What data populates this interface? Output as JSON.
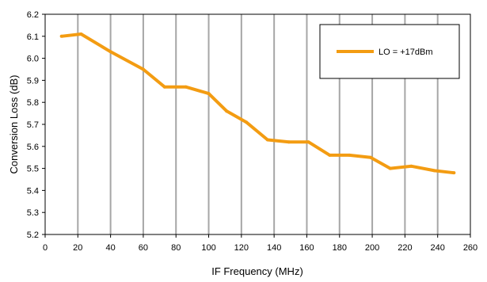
{
  "chart_data": {
    "type": "line",
    "xlabel": "IF Frequency (MHz)",
    "ylabel": "Conversion Loss (dB)",
    "xlim": [
      0,
      260
    ],
    "ylim": [
      5.2,
      6.2
    ],
    "xticks": [
      "0",
      "20",
      "40",
      "60",
      "80",
      "100",
      "120",
      "140",
      "160",
      "180",
      "200",
      "220",
      "240",
      "260"
    ],
    "yticks": [
      "5.2",
      "5.3",
      "5.4",
      "5.5",
      "5.6",
      "5.7",
      "5.8",
      "5.9",
      "6.0",
      "6.1",
      "6.2"
    ],
    "grid": "vertical",
    "legend_position": "top-right",
    "series": [
      {
        "name": "LO = +17dBm",
        "color": "#f39c12",
        "x": [
          10,
          22,
          40,
          60,
          73,
          86,
          100,
          111,
          123,
          136,
          149,
          161,
          174,
          186,
          199,
          211,
          224,
          238,
          250
        ],
        "y": [
          6.1,
          6.11,
          6.03,
          5.95,
          5.87,
          5.87,
          5.84,
          5.76,
          5.71,
          5.63,
          5.62,
          5.62,
          5.56,
          5.56,
          5.55,
          5.5,
          5.51,
          5.49,
          5.48
        ]
      }
    ]
  }
}
